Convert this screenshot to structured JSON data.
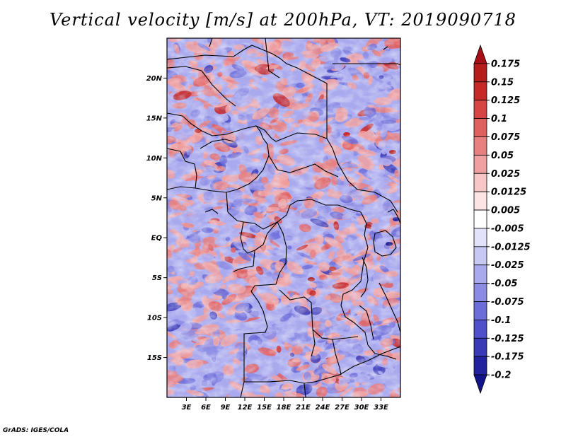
{
  "title": "Vertical velocity [m/s] at 200hPa, VT: 2019090718",
  "footer": "GrADS: IGES/COLA",
  "map": {
    "lon_range": [
      0,
      36
    ],
    "lat_range": [
      -20,
      25
    ],
    "lat_ticks": [
      {
        "value": 20,
        "label": "20N"
      },
      {
        "value": 15,
        "label": "15N"
      },
      {
        "value": 10,
        "label": "10N"
      },
      {
        "value": 5,
        "label": "5N"
      },
      {
        "value": 0,
        "label": "EQ"
      },
      {
        "value": -5,
        "label": "5S"
      },
      {
        "value": -10,
        "label": "10S"
      },
      {
        "value": -15,
        "label": "15S"
      }
    ],
    "lon_ticks": [
      {
        "value": 3,
        "label": "3E"
      },
      {
        "value": 6,
        "label": "6E"
      },
      {
        "value": 9,
        "label": "9E"
      },
      {
        "value": 12,
        "label": "12E"
      },
      {
        "value": 15,
        "label": "15E"
      },
      {
        "value": 18,
        "label": "18E"
      },
      {
        "value": 21,
        "label": "21E"
      },
      {
        "value": 24,
        "label": "24E"
      },
      {
        "value": 27,
        "label": "27E"
      },
      {
        "value": 30,
        "label": "30E"
      },
      {
        "value": 33,
        "label": "33E"
      }
    ]
  },
  "colorbar": {
    "levels": [
      "0.175",
      "0.15",
      "0.125",
      "0.1",
      "0.075",
      "0.05",
      "0.025",
      "0.0125",
      "0.005",
      "-0.005",
      "-0.0125",
      "-0.025",
      "-0.05",
      "-0.075",
      "-0.1",
      "-0.125",
      "-0.175",
      "-0.2"
    ],
    "colors": [
      "#a50f15",
      "#b71c1c",
      "#c62828",
      "#d84343",
      "#e06060",
      "#e88080",
      "#f0a0a0",
      "#f7c6c6",
      "#fce4e4",
      "#ffffff",
      "#e2e2fb",
      "#c8c8f5",
      "#a9a9ee",
      "#8b8be4",
      "#6d6dd9",
      "#5050cc",
      "#3a3ab8",
      "#2222a0",
      "#12128a"
    ]
  },
  "chart_data": {
    "type": "heatmap",
    "title": "Vertical velocity [m/s] at 200hPa, VT: 2019090718",
    "variable": "Vertical velocity",
    "units": "m/s",
    "level": "200hPa",
    "valid_time": "2019090718",
    "x_ticks": [
      "3E",
      "6E",
      "9E",
      "12E",
      "15E",
      "18E",
      "21E",
      "24E",
      "27E",
      "30E",
      "33E"
    ],
    "y_ticks": [
      "20N",
      "15N",
      "10N",
      "5N",
      "EQ",
      "5S",
      "10S",
      "15S"
    ],
    "contour_levels": [
      -0.2,
      -0.175,
      -0.125,
      -0.1,
      -0.075,
      -0.05,
      -0.025,
      -0.0125,
      -0.005,
      0.005,
      0.0125,
      0.025,
      0.05,
      0.075,
      0.1,
      0.125,
      0.15,
      0.175
    ]
  }
}
